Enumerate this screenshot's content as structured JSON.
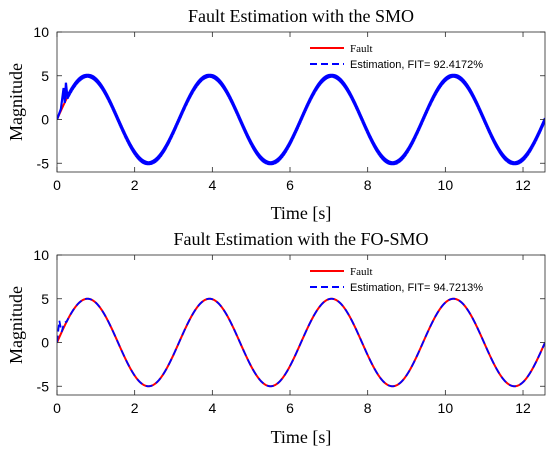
{
  "chart_data": [
    {
      "type": "line",
      "title": "Fault Estimation with the SMO",
      "xlabel": "Time [s]",
      "ylabel": "Magnitude",
      "xlim": [
        0,
        12.566
      ],
      "ylim": [
        -6,
        10
      ],
      "xticks": [
        "0",
        "2",
        "4",
        "6",
        "8",
        "10",
        "12"
      ],
      "xtick_values": [
        0,
        2,
        4,
        6,
        8,
        10,
        12
      ],
      "yticks": [
        "-5",
        "0",
        "5",
        "10"
      ],
      "ytick_values": [
        -5,
        0,
        5,
        10
      ],
      "legend_position": "top-right",
      "series": [
        {
          "name": "Fault",
          "color": "#ff0000",
          "style": "solid",
          "function": "5*sin(2*t)",
          "t_range": [
            0,
            12.566
          ]
        },
        {
          "name": "Estimation,  FIT= 92.4172%",
          "color": "#0000ff",
          "style": "dashed",
          "function": "5*sin(2*t) with chattering",
          "t_range": [
            0,
            12.566
          ],
          "initial_transient": {
            "t": [
              0,
              0.1,
              0.17,
              0.2,
              0.23,
              0.27
            ],
            "y": [
              0,
              1.2,
              3.6,
              1.9,
              4.2,
              2.5
            ]
          }
        }
      ]
    },
    {
      "type": "line",
      "title": "Fault Estimation with the FO-SMO",
      "xlabel": "Time [s]",
      "ylabel": "Magnitude",
      "xlim": [
        0,
        12.566
      ],
      "ylim": [
        -6,
        10
      ],
      "xticks": [
        "0",
        "2",
        "4",
        "6",
        "8",
        "10",
        "12"
      ],
      "xtick_values": [
        0,
        2,
        4,
        6,
        8,
        10,
        12
      ],
      "yticks": [
        "-5",
        "0",
        "5",
        "10"
      ],
      "ytick_values": [
        -5,
        0,
        5,
        10
      ],
      "legend_position": "top-right",
      "series": [
        {
          "name": "Fault",
          "color": "#ff0000",
          "style": "solid",
          "function": "5*sin(2*t)",
          "t_range": [
            0,
            12.566
          ]
        },
        {
          "name": "Estimation,  FIT= 94.7213%",
          "color": "#0000ff",
          "style": "dashed",
          "function": "5*sin(2*t)",
          "t_range": [
            0,
            12.566
          ],
          "initial_transient": {
            "t": [
              0,
              0.06,
              0.12,
              0.18,
              0.24
            ],
            "y": [
              0,
              2.5,
              1.2,
              2.2,
              2.4
            ]
          }
        }
      ]
    }
  ]
}
